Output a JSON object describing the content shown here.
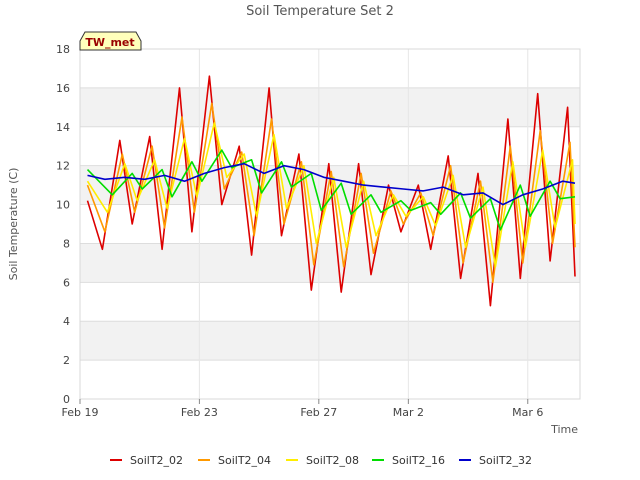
{
  "chart_data": {
    "type": "line",
    "title": "Soil Temperature Set 2",
    "xlabel": "Time",
    "ylabel": "Soil Temperature (C)",
    "ylim": [
      0,
      18
    ],
    "yticks": [
      0,
      2,
      4,
      6,
      8,
      10,
      12,
      14,
      16,
      18
    ],
    "xlim": [
      "2023-02-19",
      "2023-03-07T18:00"
    ],
    "xticks": [
      {
        "date": "2023-02-19",
        "label": "Feb 19"
      },
      {
        "date": "2023-02-23",
        "label": "Feb 23"
      },
      {
        "date": "2023-02-27",
        "label": "Feb 27"
      },
      {
        "date": "2023-03-02",
        "label": "Mar 2"
      },
      {
        "date": "2023-03-06",
        "label": "Mar 6"
      }
    ],
    "grid": true,
    "legend": "bottom",
    "annotation": "TW_met",
    "series": [
      {
        "name": "SoilT2_02",
        "color": "#dd0000",
        "x": [
          "2023-02-19T06:00",
          "2023-02-19T18:00",
          "2023-02-20T08:00",
          "2023-02-20T18:00",
          "2023-02-21T08:00",
          "2023-02-21T18:00",
          "2023-02-22T08:00",
          "2023-02-22T18:00",
          "2023-02-23T08:00",
          "2023-02-23T18:00",
          "2023-02-24T08:00",
          "2023-02-24T18:00",
          "2023-02-25T08:00",
          "2023-02-25T18:00",
          "2023-02-26T08:00",
          "2023-02-26T18:00",
          "2023-02-27T08:00",
          "2023-02-27T18:00",
          "2023-02-28T08:00",
          "2023-02-28T18:00",
          "2023-03-01T08:00",
          "2023-03-01T18:00",
          "2023-03-02T08:00",
          "2023-03-02T18:00",
          "2023-03-03T08:00",
          "2023-03-03T18:00",
          "2023-03-04T08:00",
          "2023-03-04T18:00",
          "2023-03-05T08:00",
          "2023-03-05T18:00",
          "2023-03-06T08:00",
          "2023-03-06T18:00",
          "2023-03-07T08:00",
          "2023-03-07T14:00"
        ],
        "values": [
          10.2,
          7.7,
          13.3,
          9.0,
          13.5,
          7.7,
          16.0,
          8.6,
          16.6,
          10.0,
          13.0,
          7.4,
          16.0,
          8.4,
          12.6,
          5.6,
          12.1,
          5.5,
          12.1,
          6.4,
          11.0,
          8.6,
          11.0,
          7.7,
          12.5,
          6.2,
          11.6,
          4.8,
          14.4,
          6.2,
          15.7,
          7.1,
          15.0,
          6.3
        ]
      },
      {
        "name": "SoilT2_04",
        "color": "#ff9900",
        "x": [
          "2023-02-19T06:00",
          "2023-02-19T20:00",
          "2023-02-20T10:00",
          "2023-02-20T20:00",
          "2023-02-21T10:00",
          "2023-02-21T20:00",
          "2023-02-22T10:00",
          "2023-02-22T20:00",
          "2023-02-23T10:00",
          "2023-02-23T20:00",
          "2023-02-24T10:00",
          "2023-02-24T20:00",
          "2023-02-25T10:00",
          "2023-02-25T20:00",
          "2023-02-26T10:00",
          "2023-02-26T20:00",
          "2023-02-27T10:00",
          "2023-02-27T20:00",
          "2023-02-28T10:00",
          "2023-02-28T20:00",
          "2023-03-01T10:00",
          "2023-03-01T20:00",
          "2023-03-02T10:00",
          "2023-03-02T20:00",
          "2023-03-03T10:00",
          "2023-03-03T20:00",
          "2023-03-04T10:00",
          "2023-03-04T20:00",
          "2023-03-05T10:00",
          "2023-03-05T20:00",
          "2023-03-06T10:00",
          "2023-03-06T20:00",
          "2023-03-07T10:00",
          "2023-03-07T14:00"
        ],
        "values": [
          11.0,
          8.6,
          12.6,
          9.6,
          13.0,
          8.8,
          14.5,
          9.6,
          15.2,
          10.8,
          12.7,
          8.4,
          14.4,
          9.0,
          12.2,
          6.9,
          11.7,
          6.8,
          11.6,
          7.5,
          10.7,
          9.0,
          10.6,
          8.4,
          12.0,
          7.0,
          11.2,
          6.0,
          13.0,
          7.0,
          13.8,
          8.0,
          13.2,
          7.8
        ]
      },
      {
        "name": "SoilT2_08",
        "color": "#ffee00",
        "x": [
          "2023-02-19T06:00",
          "2023-02-19T22:00",
          "2023-02-20T12:00",
          "2023-02-20T22:00",
          "2023-02-21T12:00",
          "2023-02-21T22:00",
          "2023-02-22T12:00",
          "2023-02-22T22:00",
          "2023-02-23T12:00",
          "2023-02-23T22:00",
          "2023-02-24T12:00",
          "2023-02-24T22:00",
          "2023-02-25T12:00",
          "2023-02-25T22:00",
          "2023-02-26T12:00",
          "2023-02-26T22:00",
          "2023-02-27T12:00",
          "2023-02-27T22:00",
          "2023-02-28T12:00",
          "2023-02-28T22:00",
          "2023-03-01T12:00",
          "2023-03-01T22:00",
          "2023-03-02T12:00",
          "2023-03-02T22:00",
          "2023-03-03T12:00",
          "2023-03-03T22:00",
          "2023-03-04T12:00",
          "2023-03-04T22:00",
          "2023-03-05T12:00",
          "2023-03-05T22:00",
          "2023-03-06T12:00",
          "2023-03-06T22:00",
          "2023-03-07T12:00",
          "2023-03-07T14:00"
        ],
        "values": [
          11.2,
          9.6,
          12.1,
          10.2,
          12.3,
          9.8,
          13.4,
          10.4,
          14.2,
          11.4,
          12.6,
          9.4,
          13.6,
          9.8,
          12.0,
          8.0,
          11.4,
          7.8,
          11.2,
          8.4,
          10.5,
          9.4,
          10.4,
          8.9,
          11.5,
          7.8,
          10.9,
          6.8,
          12.2,
          7.8,
          12.8,
          8.8,
          12.3,
          9.0
        ]
      },
      {
        "name": "SoilT2_16",
        "color": "#00dd00",
        "x": [
          "2023-02-19T06:00",
          "2023-02-20T02:00",
          "2023-02-20T18:00",
          "2023-02-21T02:00",
          "2023-02-21T18:00",
          "2023-02-22T02:00",
          "2023-02-22T18:00",
          "2023-02-23T02:00",
          "2023-02-23T18:00",
          "2023-02-24T02:00",
          "2023-02-24T18:00",
          "2023-02-25T02:00",
          "2023-02-25T18:00",
          "2023-02-26T02:00",
          "2023-02-26T18:00",
          "2023-02-27T02:00",
          "2023-02-27T18:00",
          "2023-02-28T02:00",
          "2023-02-28T18:00",
          "2023-03-01T02:00",
          "2023-03-01T18:00",
          "2023-03-02T02:00",
          "2023-03-02T18:00",
          "2023-03-03T02:00",
          "2023-03-03T18:00",
          "2023-03-04T02:00",
          "2023-03-04T18:00",
          "2023-03-05T02:00",
          "2023-03-05T18:00",
          "2023-03-06T02:00",
          "2023-03-06T18:00",
          "2023-03-07T02:00",
          "2023-03-07T14:00"
        ],
        "values": [
          11.8,
          10.5,
          11.6,
          10.8,
          11.8,
          10.4,
          12.2,
          11.2,
          12.8,
          11.9,
          12.3,
          10.6,
          12.2,
          10.9,
          11.6,
          9.7,
          11.1,
          9.5,
          10.5,
          9.6,
          10.2,
          9.7,
          10.1,
          9.5,
          10.6,
          9.3,
          10.3,
          8.7,
          11.0,
          9.4,
          11.2,
          10.3,
          10.4
        ]
      },
      {
        "name": "SoilT2_32",
        "color": "#0000cc",
        "x": [
          "2023-02-19T06:00",
          "2023-02-19T20:00",
          "2023-02-20T12:00",
          "2023-02-21T04:00",
          "2023-02-21T20:00",
          "2023-02-22T12:00",
          "2023-02-23T04:00",
          "2023-02-23T20:00",
          "2023-02-24T12:00",
          "2023-02-25T04:00",
          "2023-02-25T20:00",
          "2023-02-26T12:00",
          "2023-02-27T04:00",
          "2023-02-27T20:00",
          "2023-02-28T12:00",
          "2023-03-01T04:00",
          "2023-03-01T20:00",
          "2023-03-02T12:00",
          "2023-03-03T04:00",
          "2023-03-03T20:00",
          "2023-03-04T12:00",
          "2023-03-05T04:00",
          "2023-03-05T20:00",
          "2023-03-06T12:00",
          "2023-03-07T04:00",
          "2023-03-07T14:00"
        ],
        "values": [
          11.5,
          11.3,
          11.4,
          11.3,
          11.5,
          11.2,
          11.6,
          11.9,
          12.1,
          11.6,
          12.0,
          11.8,
          11.4,
          11.2,
          11.0,
          10.9,
          10.8,
          10.7,
          10.9,
          10.5,
          10.6,
          10.0,
          10.5,
          10.8,
          11.2,
          11.1
        ]
      }
    ]
  }
}
